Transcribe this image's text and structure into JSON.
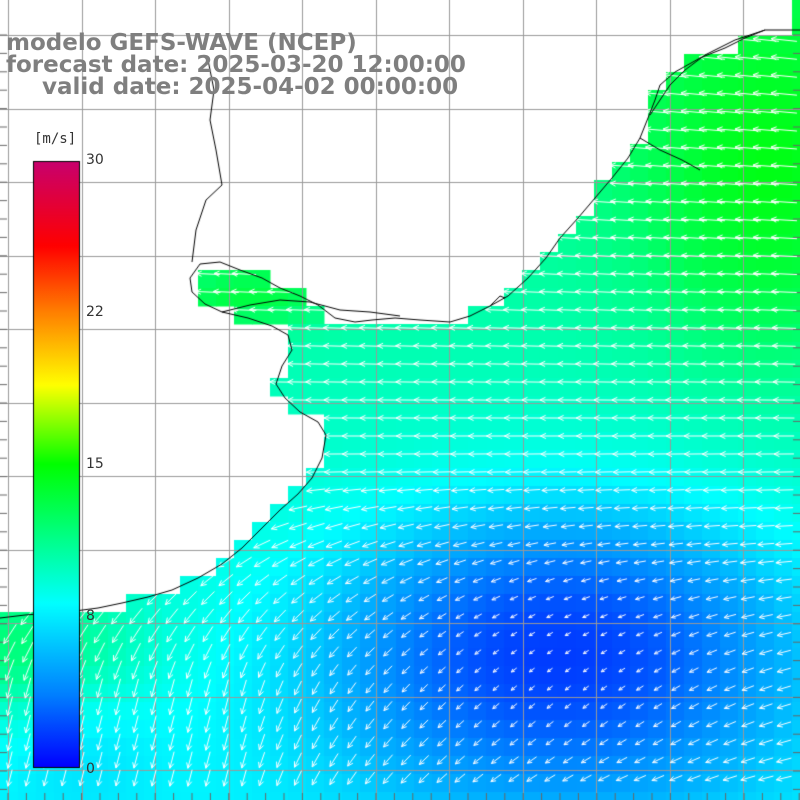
{
  "title": {
    "line1": "modelo GEFS-WAVE (NCEP)",
    "line2": "forecast date: 2025-03-20 12:00:00",
    "line3": "valid date: 2025-04-02 00:00:00"
  },
  "colorbar": {
    "unit": "[m/s]",
    "ticks": [
      "0",
      "8",
      "15",
      "22",
      "30"
    ],
    "min": 0,
    "max": 30,
    "gradient": [
      "#0000ff",
      "#0080ff",
      "#00ffff",
      "#00ff00",
      "#ffff00",
      "#ff8000",
      "#ff0000",
      "#c8006e"
    ]
  },
  "map": {
    "variable": "wind speed and direction",
    "land_color": "#ffffff",
    "coastline_color": "#000000",
    "grid_color": "#999999",
    "vector_color": "#ffffff",
    "lat_labels": [
      "",
      "",
      "",
      "",
      "",
      "",
      "",
      "",
      "",
      ""
    ],
    "lon_labels": [
      "",
      "",
      "",
      "",
      "",
      "",
      "",
      "",
      "",
      "",
      "",
      ""
    ]
  }
}
